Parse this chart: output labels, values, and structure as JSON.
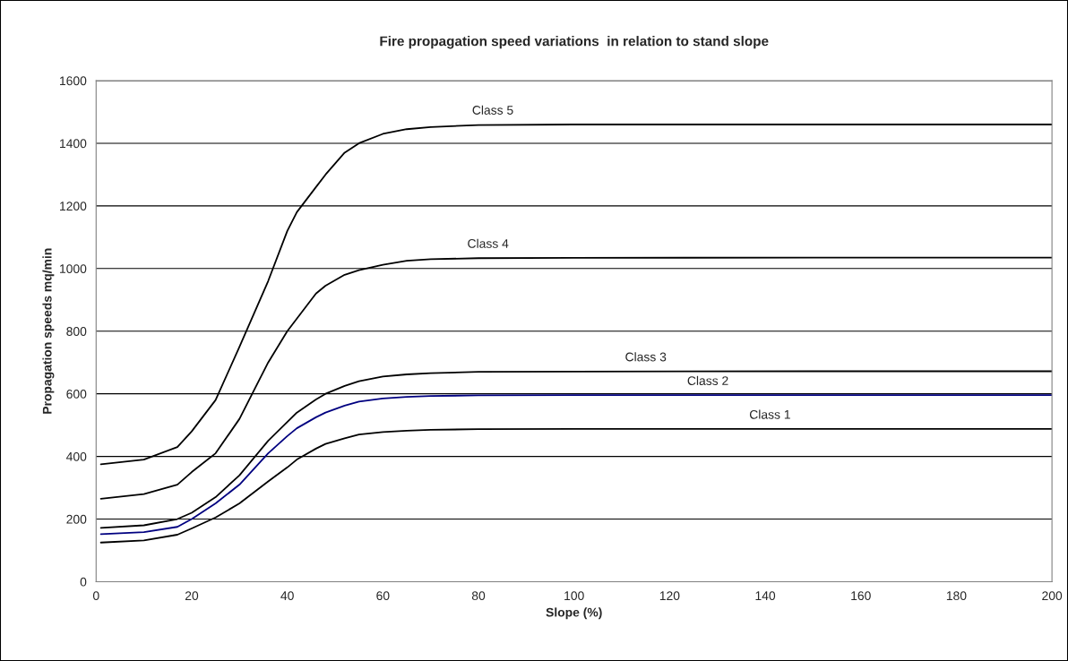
{
  "chart_data": {
    "type": "line",
    "title": "Fire propagation speed variations  in relation to stand slope",
    "xlabel": "Slope (%)",
    "ylabel": "Propagation speeds mq/min",
    "x": [
      1,
      10,
      17,
      20,
      25,
      30,
      36,
      40,
      42,
      46,
      48,
      52,
      55,
      60,
      65,
      70,
      80,
      100,
      150,
      200
    ],
    "series": [
      {
        "color": "#000000",
        "values": [
          125,
          132,
          150,
          170,
          205,
          250,
          320,
          365,
          390,
          425,
          440,
          458,
          470,
          478,
          482,
          485,
          487,
          488,
          488,
          488
        ]
      },
      {
        "color": "#000080",
        "values": [
          152,
          158,
          175,
          200,
          250,
          310,
          410,
          465,
          490,
          525,
          540,
          562,
          575,
          585,
          590,
          593,
          595,
          596,
          596,
          596
        ]
      },
      {
        "color": "#000000",
        "values": [
          172,
          180,
          200,
          220,
          270,
          340,
          450,
          510,
          540,
          582,
          600,
          625,
          640,
          655,
          662,
          666,
          670,
          671,
          672,
          672
        ]
      },
      {
        "color": "#000000",
        "values": [
          265,
          280,
          310,
          350,
          410,
          520,
          700,
          800,
          840,
          920,
          945,
          980,
          995,
          1012,
          1025,
          1030,
          1033,
          1034,
          1035,
          1035
        ]
      },
      {
        "color": "#000000",
        "values": [
          375,
          390,
          430,
          480,
          580,
          750,
          960,
          1120,
          1180,
          1260,
          1300,
          1370,
          1400,
          1430,
          1445,
          1452,
          1458,
          1460,
          1460,
          1460
        ]
      }
    ],
    "annotations": [
      {
        "text": "Class 5",
        "x": 83,
        "y": 1460
      },
      {
        "text": "Class 4",
        "x": 82,
        "y": 1034
      },
      {
        "text": "Class 3",
        "x": 115,
        "y": 672
      },
      {
        "text": "Class 2",
        "x": 128,
        "y": 596
      },
      {
        "text": "Class 1",
        "x": 141,
        "y": 488
      }
    ],
    "xlim": [
      0,
      200
    ],
    "xticks": [
      0,
      20,
      40,
      60,
      80,
      100,
      120,
      140,
      160,
      180,
      200
    ],
    "ylim": [
      0,
      1600
    ],
    "yticks": [
      0,
      200,
      400,
      600,
      800,
      1000,
      1200,
      1400,
      1600
    ],
    "grid": "y",
    "legend": false,
    "marker": "none",
    "line_style": "solid"
  }
}
